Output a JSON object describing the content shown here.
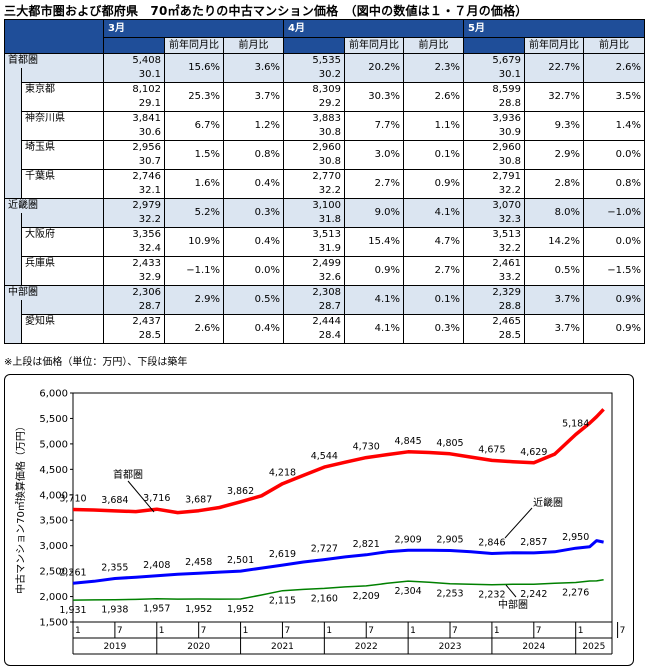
{
  "title": "三大都市圏および都府県　70㎡あたりの中古マンション価格　（図中の数値は１・７月の価格）",
  "table": {
    "months": [
      "3月",
      "4月",
      "5月"
    ],
    "col_yoy": "前年同月比",
    "col_mom": "前月比",
    "rows": [
      {
        "name": "首都圏",
        "level": "region",
        "cells": [
          {
            "price": "5,408",
            "age": "30.1",
            "yoy": "15.6%",
            "mom": "3.6%"
          },
          {
            "price": "5,535",
            "age": "30.2",
            "yoy": "20.2%",
            "mom": "2.3%"
          },
          {
            "price": "5,679",
            "age": "30.1",
            "yoy": "22.7%",
            "mom": "2.6%"
          }
        ]
      },
      {
        "name": "東京都",
        "level": "pref",
        "cells": [
          {
            "price": "8,102",
            "age": "29.1",
            "yoy": "25.3%",
            "mom": "3.7%"
          },
          {
            "price": "8,309",
            "age": "29.2",
            "yoy": "30.3%",
            "mom": "2.6%"
          },
          {
            "price": "8,599",
            "age": "28.8",
            "yoy": "32.7%",
            "mom": "3.5%"
          }
        ]
      },
      {
        "name": "神奈川県",
        "level": "pref",
        "cells": [
          {
            "price": "3,841",
            "age": "30.6",
            "yoy": "6.7%",
            "mom": "1.2%"
          },
          {
            "price": "3,883",
            "age": "30.8",
            "yoy": "7.7%",
            "mom": "1.1%"
          },
          {
            "price": "3,936",
            "age": "30.9",
            "yoy": "9.3%",
            "mom": "1.4%"
          }
        ]
      },
      {
        "name": "埼玉県",
        "level": "pref",
        "cells": [
          {
            "price": "2,956",
            "age": "30.7",
            "yoy": "1.5%",
            "mom": "0.8%"
          },
          {
            "price": "2,960",
            "age": "30.8",
            "yoy": "3.0%",
            "mom": "0.1%"
          },
          {
            "price": "2,960",
            "age": "30.8",
            "yoy": "2.9%",
            "mom": "0.0%"
          }
        ]
      },
      {
        "name": "千葉県",
        "level": "pref",
        "cells": [
          {
            "price": "2,746",
            "age": "32.1",
            "yoy": "1.6%",
            "mom": "0.4%"
          },
          {
            "price": "2,770",
            "age": "32.2",
            "yoy": "2.7%",
            "mom": "0.9%"
          },
          {
            "price": "2,791",
            "age": "32.2",
            "yoy": "2.8%",
            "mom": "0.8%"
          }
        ]
      },
      {
        "name": "近畿圏",
        "level": "region",
        "cells": [
          {
            "price": "2,979",
            "age": "32.2",
            "yoy": "5.2%",
            "mom": "0.3%"
          },
          {
            "price": "3,100",
            "age": "31.8",
            "yoy": "9.0%",
            "mom": "4.1%"
          },
          {
            "price": "3,070",
            "age": "32.3",
            "yoy": "8.0%",
            "mom": "−1.0%"
          }
        ]
      },
      {
        "name": "大阪府",
        "level": "pref",
        "cells": [
          {
            "price": "3,356",
            "age": "32.4",
            "yoy": "10.9%",
            "mom": "0.4%"
          },
          {
            "price": "3,513",
            "age": "31.9",
            "yoy": "15.4%",
            "mom": "4.7%"
          },
          {
            "price": "3,513",
            "age": "32.2",
            "yoy": "14.2%",
            "mom": "0.0%"
          }
        ]
      },
      {
        "name": "兵庫県",
        "level": "pref",
        "cells": [
          {
            "price": "2,433",
            "age": "32.9",
            "yoy": "−1.1%",
            "mom": "0.0%"
          },
          {
            "price": "2,499",
            "age": "32.6",
            "yoy": "0.9%",
            "mom": "2.7%"
          },
          {
            "price": "2,461",
            "age": "33.2",
            "yoy": "0.5%",
            "mom": "−1.5%"
          }
        ]
      },
      {
        "name": "中部圏",
        "level": "region",
        "cells": [
          {
            "price": "2,306",
            "age": "28.7",
            "yoy": "2.9%",
            "mom": "0.5%"
          },
          {
            "price": "2,308",
            "age": "28.7",
            "yoy": "4.1%",
            "mom": "0.1%"
          },
          {
            "price": "2,329",
            "age": "28.8",
            "yoy": "3.7%",
            "mom": "0.9%"
          }
        ]
      },
      {
        "name": "愛知県",
        "level": "pref",
        "cells": [
          {
            "price": "2,437",
            "age": "28.5",
            "yoy": "2.6%",
            "mom": "0.4%"
          },
          {
            "price": "2,444",
            "age": "28.4",
            "yoy": "4.1%",
            "mom": "0.3%"
          },
          {
            "price": "2,465",
            "age": "28.5",
            "yoy": "3.7%",
            "mom": "0.9%"
          }
        ]
      }
    ]
  },
  "note": "※上段は価格（単位：万円）、下段は築年",
  "colors": {
    "header_bg": "#1f4e99",
    "tint": "#dbe5f1",
    "shuto": "#ff0000",
    "kinki": "#0000ff",
    "chubu": "#008000"
  },
  "chart_data": {
    "type": "line",
    "ylabel": "中古マンション70㎡換算価格（万円）",
    "ylim": [
      1500,
      6000
    ],
    "yticks": [
      "1,500",
      "2,000",
      "2,500",
      "3,000",
      "3,500",
      "4,000",
      "4,500",
      "5,000",
      "5,500",
      "6,000"
    ],
    "x_start": "2019-01",
    "x_end": "2025-05",
    "x_month_ticks": [
      "1",
      "7",
      "1",
      "7",
      "1",
      "7",
      "1",
      "7",
      "1",
      "7",
      "1",
      "7",
      "1",
      "7"
    ],
    "x_year_labels": [
      "2019",
      "2020",
      "2021",
      "2022",
      "2023",
      "2024",
      "2025"
    ],
    "series": [
      {
        "name": "首都圏",
        "color": "#ff0000",
        "points": [
          [
            "2019-01",
            3710
          ],
          [
            "2019-04",
            3700
          ],
          [
            "2019-07",
            3684
          ],
          [
            "2019-10",
            3670
          ],
          [
            "2019-12",
            3700
          ],
          [
            "2020-01",
            3716
          ],
          [
            "2020-04",
            3650
          ],
          [
            "2020-07",
            3687
          ],
          [
            "2020-10",
            3750
          ],
          [
            "2021-01",
            3862
          ],
          [
            "2021-04",
            3980
          ],
          [
            "2021-07",
            4218
          ],
          [
            "2021-10",
            4380
          ],
          [
            "2022-01",
            4544
          ],
          [
            "2022-04",
            4640
          ],
          [
            "2022-07",
            4730
          ],
          [
            "2022-10",
            4790
          ],
          [
            "2023-01",
            4845
          ],
          [
            "2023-04",
            4830
          ],
          [
            "2023-07",
            4805
          ],
          [
            "2023-10",
            4740
          ],
          [
            "2024-01",
            4675
          ],
          [
            "2024-04",
            4650
          ],
          [
            "2024-07",
            4629
          ],
          [
            "2024-10",
            4800
          ],
          [
            "2025-01",
            5184
          ],
          [
            "2025-03",
            5408
          ],
          [
            "2025-04",
            5535
          ],
          [
            "2025-05",
            5679
          ]
        ],
        "labels": [
          [
            "2019-01",
            "3,710"
          ],
          [
            "2019-07",
            "3,684"
          ],
          [
            "2020-01",
            "3,716"
          ],
          [
            "2020-07",
            "3,687"
          ],
          [
            "2021-01",
            "3,862"
          ],
          [
            "2021-07",
            "4,218"
          ],
          [
            "2022-01",
            "4,544"
          ],
          [
            "2022-07",
            "4,730"
          ],
          [
            "2023-01",
            "4,845"
          ],
          [
            "2023-07",
            "4,805"
          ],
          [
            "2024-01",
            "4,675"
          ],
          [
            "2024-07",
            "4,629"
          ],
          [
            "2025-01",
            "5,184"
          ]
        ]
      },
      {
        "name": "近畿圏",
        "color": "#0000ff",
        "points": [
          [
            "2019-01",
            2261
          ],
          [
            "2019-04",
            2300
          ],
          [
            "2019-07",
            2355
          ],
          [
            "2019-10",
            2380
          ],
          [
            "2020-01",
            2408
          ],
          [
            "2020-04",
            2440
          ],
          [
            "2020-07",
            2458
          ],
          [
            "2020-10",
            2480
          ],
          [
            "2021-01",
            2501
          ],
          [
            "2021-04",
            2560
          ],
          [
            "2021-07",
            2619
          ],
          [
            "2021-10",
            2680
          ],
          [
            "2022-01",
            2727
          ],
          [
            "2022-04",
            2780
          ],
          [
            "2022-07",
            2821
          ],
          [
            "2022-10",
            2880
          ],
          [
            "2023-01",
            2909
          ],
          [
            "2023-04",
            2910
          ],
          [
            "2023-07",
            2905
          ],
          [
            "2023-10",
            2880
          ],
          [
            "2024-01",
            2846
          ],
          [
            "2024-04",
            2860
          ],
          [
            "2024-07",
            2857
          ],
          [
            "2024-10",
            2880
          ],
          [
            "2025-01",
            2950
          ],
          [
            "2025-03",
            2979
          ],
          [
            "2025-04",
            3100
          ],
          [
            "2025-05",
            3070
          ]
        ],
        "labels": [
          [
            "2019-01",
            "2,261"
          ],
          [
            "2019-07",
            "2,355"
          ],
          [
            "2020-01",
            "2,408"
          ],
          [
            "2020-07",
            "2,458"
          ],
          [
            "2021-01",
            "2,501"
          ],
          [
            "2021-07",
            "2,619"
          ],
          [
            "2022-01",
            "2,727"
          ],
          [
            "2022-07",
            "2,821"
          ],
          [
            "2023-01",
            "2,909"
          ],
          [
            "2023-07",
            "2,905"
          ],
          [
            "2024-01",
            "2,846"
          ],
          [
            "2024-07",
            "2,857"
          ],
          [
            "2025-01",
            "2,950"
          ]
        ]
      },
      {
        "name": "中部圏",
        "color": "#008000",
        "points": [
          [
            "2019-01",
            1931
          ],
          [
            "2019-04",
            1935
          ],
          [
            "2019-07",
            1938
          ],
          [
            "2019-10",
            1945
          ],
          [
            "2020-01",
            1957
          ],
          [
            "2020-04",
            1950
          ],
          [
            "2020-07",
            1952
          ],
          [
            "2020-10",
            1950
          ],
          [
            "2021-01",
            1952
          ],
          [
            "2021-04",
            2030
          ],
          [
            "2021-07",
            2115
          ],
          [
            "2021-10",
            2140
          ],
          [
            "2022-01",
            2160
          ],
          [
            "2022-04",
            2190
          ],
          [
            "2022-07",
            2209
          ],
          [
            "2022-10",
            2260
          ],
          [
            "2023-01",
            2304
          ],
          [
            "2023-04",
            2280
          ],
          [
            "2023-07",
            2253
          ],
          [
            "2023-10",
            2240
          ],
          [
            "2024-01",
            2232
          ],
          [
            "2024-04",
            2240
          ],
          [
            "2024-07",
            2242
          ],
          [
            "2024-10",
            2260
          ],
          [
            "2025-01",
            2276
          ],
          [
            "2025-03",
            2306
          ],
          [
            "2025-04",
            2308
          ],
          [
            "2025-05",
            2329
          ]
        ],
        "labels": [
          [
            "2019-01",
            "1,931"
          ],
          [
            "2019-07",
            "1,938"
          ],
          [
            "2020-01",
            "1,957"
          ],
          [
            "2020-07",
            "1,952"
          ],
          [
            "2021-01",
            "1,952"
          ],
          [
            "2021-07",
            "2,115"
          ],
          [
            "2022-01",
            "2,160"
          ],
          [
            "2022-07",
            "2,209"
          ],
          [
            "2023-01",
            "2,304"
          ],
          [
            "2023-07",
            "2,253"
          ],
          [
            "2024-01",
            "2,232"
          ],
          [
            "2024-07",
            "2,242"
          ],
          [
            "2025-01",
            "2,276"
          ]
        ]
      }
    ]
  }
}
